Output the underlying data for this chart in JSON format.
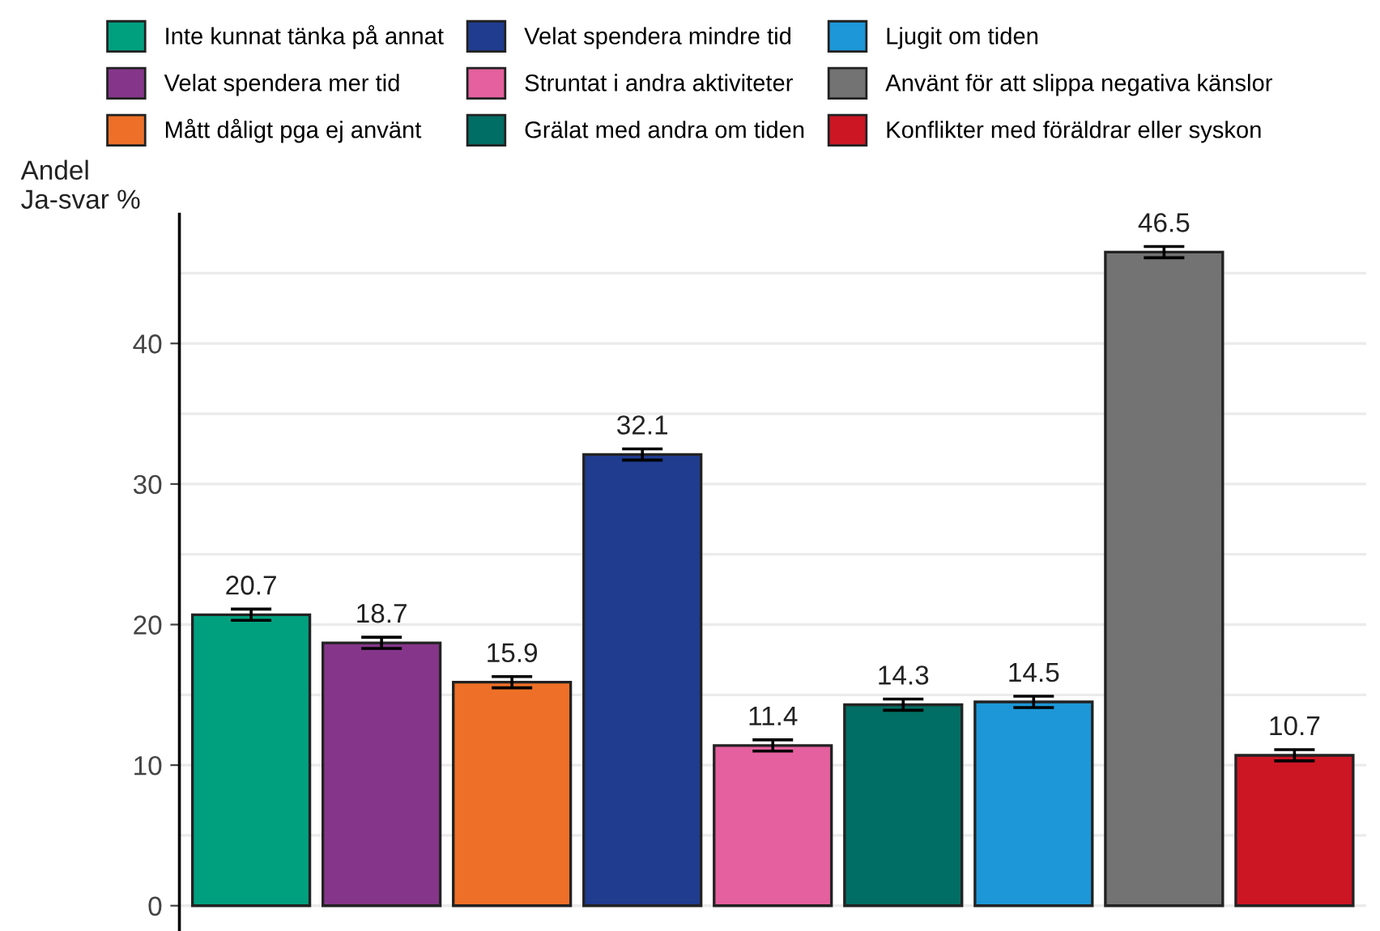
{
  "chart_data": {
    "type": "bar",
    "ylabel": "Andel\nJa-svar %",
    "categories": [
      null,
      null,
      null,
      null,
      null,
      null,
      null,
      null,
      null
    ],
    "series": [
      {
        "name": "Inte kunnat tänka på annat",
        "color": "#00a07f",
        "values": [
          20.7,
          null,
          null,
          null,
          null,
          null,
          null,
          null,
          null
        ],
        "errors": [
          0.4,
          null,
          null,
          null,
          null,
          null,
          null,
          null,
          null
        ]
      },
      {
        "name": "Velat spendera mer tid",
        "color": "#85368a",
        "values": [
          null,
          18.7,
          null,
          null,
          null,
          null,
          null,
          null,
          null
        ],
        "errors": [
          null,
          0.4,
          null,
          null,
          null,
          null,
          null,
          null,
          null
        ]
      },
      {
        "name": "Mått dåligt pga ej använt",
        "color": "#ee7028",
        "values": [
          null,
          null,
          15.9,
          null,
          null,
          null,
          null,
          null,
          null
        ],
        "errors": [
          null,
          null,
          0.4,
          null,
          null,
          null,
          null,
          null,
          null
        ]
      },
      {
        "name": "Velat spendera mindre tid",
        "color": "#1f3c8f",
        "values": [
          null,
          null,
          null,
          32.1,
          null,
          null,
          null,
          null,
          null
        ],
        "errors": [
          null,
          null,
          null,
          0.4,
          null,
          null,
          null,
          null,
          null
        ]
      },
      {
        "name": "Struntat i andra aktiviteter",
        "color": "#e4609e",
        "values": [
          null,
          null,
          null,
          null,
          11.4,
          null,
          null,
          null,
          null
        ],
        "errors": [
          null,
          null,
          null,
          null,
          0.4,
          null,
          null,
          null,
          null
        ]
      },
      {
        "name": "Grälat med andra om tiden",
        "color": "#006e64",
        "values": [
          null,
          null,
          null,
          null,
          null,
          14.3,
          null,
          null,
          null
        ],
        "errors": [
          null,
          null,
          null,
          null,
          null,
          0.4,
          null,
          null,
          null
        ]
      },
      {
        "name": "Ljugit om tiden",
        "color": "#1d97d7",
        "values": [
          null,
          null,
          null,
          null,
          null,
          null,
          14.5,
          null,
          null
        ],
        "errors": [
          null,
          null,
          null,
          null,
          null,
          null,
          0.4,
          null,
          null
        ]
      },
      {
        "name": "Använt för att slippa negativa känslor",
        "color": "#737373",
        "values": [
          null,
          null,
          null,
          null,
          null,
          null,
          null,
          46.5,
          null
        ],
        "errors": [
          null,
          null,
          null,
          null,
          null,
          null,
          null,
          0.4,
          null
        ]
      },
      {
        "name": "Konflikter med föräldrar eller syskon",
        "color": "#cc1624",
        "values": [
          null,
          null,
          null,
          null,
          null,
          null,
          null,
          null,
          10.7
        ],
        "errors": [
          null,
          null,
          null,
          null,
          null,
          null,
          null,
          null,
          0.4
        ]
      }
    ],
    "ylim": [
      -1.8,
      49.2
    ],
    "yticks": [
      0,
      {
        "value": 5,
        "label": null
      },
      10,
      {
        "value": 15,
        "label": null
      },
      20,
      {
        "value": 25,
        "label": null
      },
      30,
      {
        "value": 35,
        "label": null
      },
      40,
      {
        "value": 45,
        "label": null
      }
    ],
    "grid": "y",
    "legend": "top",
    "data_labels": true,
    "tick_labels": "y"
  }
}
